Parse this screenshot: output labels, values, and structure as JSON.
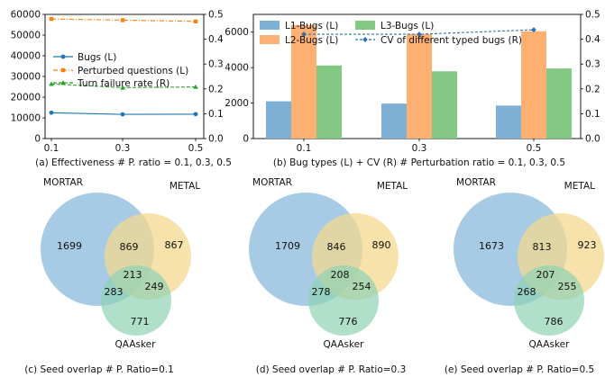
{
  "chart_data": [
    {
      "type": "line",
      "caption": "(a) Effectiveness # P. ratio = 0.1, 0.3, 0.5",
      "x": [
        0.1,
        0.3,
        0.5
      ],
      "x_tick_labels": [
        "0.1",
        "0.3",
        "0.5"
      ],
      "ylim_left": [
        0,
        60000
      ],
      "y_ticks_left": [
        "0",
        "10000",
        "20000",
        "30000",
        "40000",
        "50000",
        "60000"
      ],
      "ylim_right": [
        0,
        0.5
      ],
      "y_ticks_right": [
        "0.0",
        "0.1",
        "0.2",
        "0.3",
        "0.4",
        "0.5"
      ],
      "legend_position": "center-left",
      "series": [
        {
          "name": "Bugs (L)",
          "axis": "left",
          "color": "#1f77b4",
          "marker": "circle",
          "line": "solid",
          "values": [
            12500,
            11700,
            11800
          ]
        },
        {
          "name": "Perturbed questions (L)",
          "axis": "left",
          "color": "#ff7f0e",
          "marker": "square",
          "line": "dashdot",
          "values": [
            57800,
            57200,
            56600
          ]
        },
        {
          "name": "Turn failure rate (R)",
          "axis": "right",
          "color": "#2ca02c",
          "marker": "triangle",
          "line": "dashed",
          "values": [
            0.22,
            0.205,
            0.208
          ]
        }
      ]
    },
    {
      "type": "bar",
      "caption": "(b) Bug types (L) + CV (R) # Perturbation ratio = 0.1, 0.3, 0.5",
      "categories": [
        "0.1",
        "0.3",
        "0.5"
      ],
      "ylim_left": [
        0,
        7000
      ],
      "y_ticks_left": [
        "0",
        "2000",
        "4000",
        "6000"
      ],
      "ylim_right": [
        0,
        0.5
      ],
      "y_ticks_right": [
        "0.0",
        "0.1",
        "0.2",
        "0.3",
        "0.4",
        "0.5"
      ],
      "legend_position": "top",
      "series": [
        {
          "name": "L1-Bugs (L)",
          "color": "#7eb0d5",
          "values": [
            2100,
            1970,
            1860
          ]
        },
        {
          "name": "L2-Bugs (L)",
          "color": "#fdb072",
          "values": [
            6400,
            5900,
            6050
          ]
        },
        {
          "name": "L3-Bugs (L)",
          "color": "#82c782",
          "values": [
            4120,
            3790,
            3950
          ]
        }
      ],
      "line_series": {
        "name": "CV of different typed bugs (R)",
        "color": "#2e6fb0",
        "marker": "diamond",
        "line": "dashed",
        "values": [
          0.42,
          0.42,
          0.438
        ]
      }
    },
    {
      "type": "venn",
      "caption": "(c) Seed overlap # P. Ratio=0.1",
      "sets": [
        "MORTAR",
        "METAL",
        "QAAsker"
      ],
      "regions": {
        "only_a": "1699",
        "only_b": "867",
        "only_c": "771",
        "ab": "869",
        "ac": "283",
        "bc": "249",
        "abc": "213"
      }
    },
    {
      "type": "venn",
      "caption": "(d) Seed overlap # P. Ratio=0.3",
      "sets": [
        "MORTAR",
        "METAL",
        "QAAsker"
      ],
      "regions": {
        "only_a": "1709",
        "only_b": "890",
        "only_c": "776",
        "ab": "846",
        "ac": "278",
        "bc": "254",
        "abc": "208"
      }
    },
    {
      "type": "venn",
      "caption": "(e) Seed overlap # P. Ratio=0.5",
      "sets": [
        "MORTAR",
        "METAL",
        "QAAsker"
      ],
      "regions": {
        "only_a": "1673",
        "only_b": "923",
        "only_c": "786",
        "ab": "813",
        "ac": "268",
        "bc": "255",
        "abc": "207"
      }
    }
  ]
}
